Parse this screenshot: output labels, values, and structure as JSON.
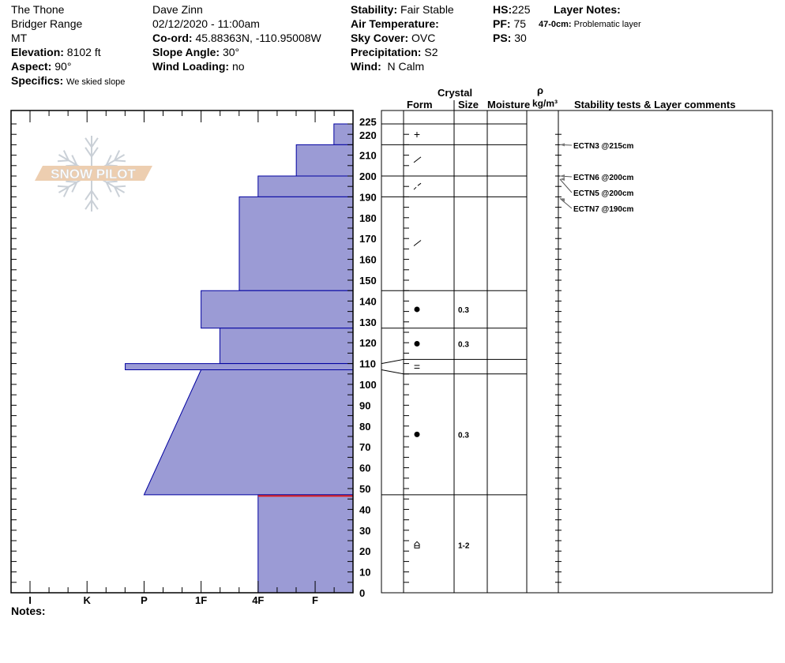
{
  "header": {
    "location": "The Thone",
    "range": "Bridger Range",
    "state": "MT",
    "elevation_label": "Elevation:",
    "elevation": "8102 ft",
    "aspect_label": "Aspect:",
    "aspect": "90°",
    "specifics_label": "Specifics:",
    "specifics": "We skied slope",
    "observer": "Dave Zinn",
    "datetime": "02/12/2020 - 11:00am",
    "coord_label": "Co-ord:",
    "coord": "45.88363N, -110.95008W",
    "slope_label": "Slope Angle:",
    "slope": "30°",
    "windload_label": "Wind Loading:",
    "windload": "no",
    "stability_label": "Stability:",
    "stability": "Fair Stable",
    "airtemp_label": "Air Temperature:",
    "airtemp": "",
    "sky_label": "Sky Cover:",
    "sky": "OVC",
    "precip_label": "Precipitation:",
    "precip": "S2",
    "wind_label": "Wind:",
    "wind": "N Calm",
    "hs_label": "HS:",
    "hs": "225",
    "pf_label": "PF:",
    "pf": "75",
    "ps_label": "PS:",
    "ps": "30",
    "layer_notes_label": "Layer Notes:",
    "layer_note_range": "47-0cm:",
    "layer_note_text": "Problematic layer"
  },
  "columns": {
    "crystal": "Crystal",
    "form": "Form",
    "size": "Size",
    "moisture": "Moisture",
    "rho": "ρ",
    "density_unit": "kg/m³",
    "comments": "Stability tests & Layer comments"
  },
  "notes_label": "Notes:",
  "logo_text": "SNOW PILOT",
  "colors": {
    "layer_fill": "#9b9bd5",
    "layer_stroke": "#0000a0",
    "problem_line": "#e02020",
    "logo_band": "#ecc9a8",
    "logo_flake": "#c5ccd3"
  },
  "chart_data": {
    "type": "snow-profile",
    "depth_range_cm": [
      0,
      225
    ],
    "depth_ticks": [
      "0",
      "10",
      "20",
      "30",
      "40",
      "50",
      "60",
      "70",
      "80",
      "90",
      "100",
      "110",
      "120",
      "130",
      "140",
      "150",
      "160",
      "170",
      "180",
      "190",
      "200",
      "210",
      "220",
      "225"
    ],
    "hardness_ticks": [
      "I",
      "K",
      "P",
      "1F",
      "4F",
      "F"
    ],
    "layers": [
      {
        "top": 225,
        "bottom": 215,
        "hardness_top": "F-",
        "hardness_bottom": "F-",
        "form": "+",
        "size": ""
      },
      {
        "top": 215,
        "bottom": 200,
        "hardness_top": "F+",
        "hardness_bottom": "F+",
        "form": "/",
        "size": ""
      },
      {
        "top": 200,
        "bottom": 190,
        "hardness_top": "4F",
        "hardness_bottom": "4F",
        "form": "⁄ ⁄",
        "size": ""
      },
      {
        "top": 190,
        "bottom": 145,
        "hardness_top": "4F+",
        "hardness_bottom": "4F+",
        "form": "/",
        "size": ""
      },
      {
        "top": 145,
        "bottom": 127,
        "hardness_top": "1F",
        "hardness_bottom": "1F",
        "form": "●",
        "size": "0.3"
      },
      {
        "top": 127,
        "bottom": 110,
        "hardness_top": "1F-",
        "hardness_bottom": "1F-",
        "form": "●",
        "size": "0.3"
      },
      {
        "top": 110,
        "bottom": 107,
        "hardness_top": "P+",
        "hardness_bottom": "P+",
        "form": "=",
        "size": ""
      },
      {
        "top": 107,
        "bottom": 47,
        "hardness_top": "1F",
        "hardness_bottom": "P",
        "form": "●",
        "size": "0.3"
      },
      {
        "top": 47,
        "bottom": 0,
        "hardness_top": "4F",
        "hardness_bottom": "4F",
        "form": "depth-hoar",
        "size": "1-2"
      }
    ],
    "problem_layer_depth": 47,
    "stability_tests": [
      {
        "label": "ECTN3 @215cm",
        "depth": 215
      },
      {
        "label": "ECTN6 @200cm",
        "depth": 200
      },
      {
        "label": "ECTN5 @200cm",
        "depth": 200
      },
      {
        "label": "ECTN7 @190cm",
        "depth": 190
      }
    ]
  }
}
